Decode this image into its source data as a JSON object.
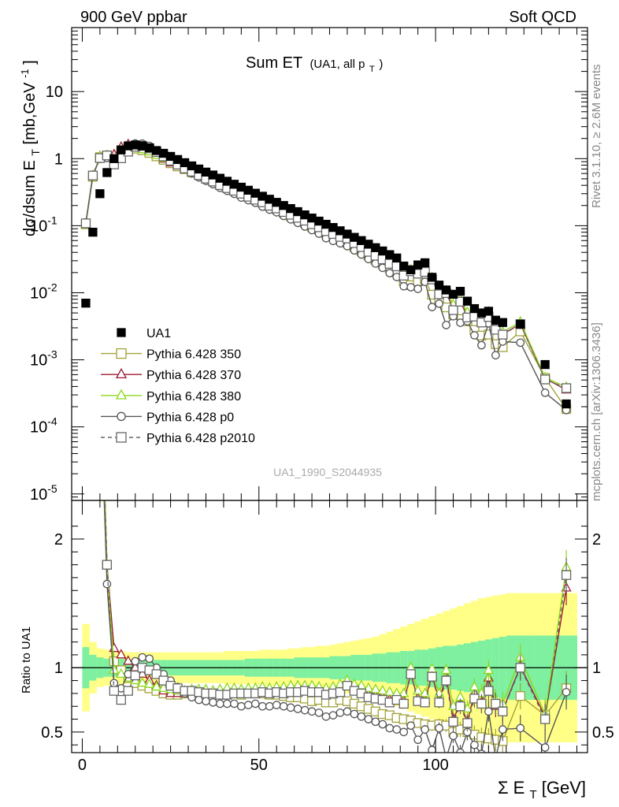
{
  "header": {
    "left": "900 GeV ppbar",
    "right": "Soft QCD"
  },
  "side_text": {
    "top": "Rivet 3.1.10, ≥ 2.6M events",
    "bottom": "mcplots.cern.ch [arXiv:1306.3436]"
  },
  "colors": {
    "data": "#000000",
    "p350": "#a2a23a",
    "p370": "#9e1b32",
    "p380": "#8bd81e",
    "p0": "#555555",
    "p2010": "#666666",
    "band_inner": "#7ef0a0",
    "band_outer": "#ffff88"
  },
  "chart_data": {
    "type": "scatter",
    "title": "Sum ET",
    "title_sub": "(UA1, all p",
    "title_sub_T": "T",
    "title_sub_end": ")",
    "watermark": "UA1_1990_S2044935",
    "xlabel": "Σ E",
    "xlabel_sub": "T",
    "xlabel_unit": " [GeV]",
    "ylabel_top_pre": "dσ/dsum E",
    "ylabel_top_sub": "T",
    "ylabel_top_unit": " [mb,GeV",
    "ylabel_top_sup": "-1",
    "ylabel_top_end": "]",
    "ylabel_bottom": "Ratio to UA1",
    "xlim": [
      -3,
      143
    ],
    "ylim_top": [
      8e-06,
      90
    ],
    "ylim_bottom": [
      0.34,
      2.3
    ],
    "x_ticks": [
      "0",
      "50",
      "100"
    ],
    "y_ticks_top": [
      {
        "base": "10",
        "exp": ""
      },
      {
        "base": "1",
        "exp": ""
      },
      {
        "base": "10",
        "exp": "-1"
      },
      {
        "base": "10",
        "exp": "-2"
      },
      {
        "base": "10",
        "exp": "-3"
      },
      {
        "base": "10",
        "exp": "-4"
      },
      {
        "base": "10",
        "exp": "-5"
      }
    ],
    "y_ticks_bottom": [
      "2",
      "1",
      "0.5"
    ],
    "legend": [
      {
        "key": "data",
        "label": "UA1"
      },
      {
        "key": "p350",
        "label": "Pythia 6.428 350"
      },
      {
        "key": "p370",
        "label": "Pythia 6.428 370"
      },
      {
        "key": "p380",
        "label": "Pythia 6.428 380"
      },
      {
        "key": "p0",
        "label": "Pythia 6.428 p0"
      },
      {
        "key": "p2010",
        "label": "Pythia 6.428 p2010"
      }
    ],
    "data_x": [
      1,
      3,
      5,
      7,
      9,
      11,
      13,
      15,
      17,
      19,
      21,
      23,
      25,
      27,
      29,
      31,
      33,
      35,
      37,
      39,
      41,
      43,
      45,
      47,
      49,
      51,
      53,
      55,
      57,
      59,
      61,
      63,
      65,
      67,
      69,
      71,
      73,
      75,
      77,
      79,
      81,
      83,
      85,
      87,
      89,
      91,
      93,
      95,
      97,
      99,
      101,
      103,
      105,
      107,
      109,
      111,
      113,
      115,
      117,
      119,
      124,
      131,
      137
    ],
    "data_y": [
      0.007,
      0.08,
      0.3,
      0.62,
      1.0,
      1.35,
      1.55,
      1.6,
      1.55,
      1.45,
      1.32,
      1.2,
      1.08,
      0.97,
      0.87,
      0.78,
      0.7,
      0.63,
      0.57,
      0.51,
      0.46,
      0.415,
      0.375,
      0.338,
      0.305,
      0.275,
      0.248,
      0.223,
      0.2,
      0.18,
      0.162,
      0.145,
      0.13,
      0.117,
      0.105,
      0.094,
      0.084,
      0.075,
      0.067,
      0.06,
      0.053,
      0.047,
      0.042,
      0.037,
      0.033,
      0.025,
      0.022,
      0.026,
      0.028,
      0.017,
      0.013,
      0.011,
      0.0095,
      0.0105,
      0.0075,
      0.0058,
      0.005,
      0.0053,
      0.0039,
      0.0036,
      0.0034,
      0.00085,
      0.00022
    ],
    "mc_x": [
      1,
      3,
      5,
      7,
      9,
      11,
      13,
      15,
      17,
      19,
      21,
      23,
      25,
      27,
      29,
      31,
      33,
      35,
      37,
      39,
      41,
      43,
      45,
      47,
      49,
      51,
      53,
      55,
      57,
      59,
      61,
      63,
      65,
      67,
      69,
      71,
      73,
      75,
      77,
      79,
      81,
      83,
      85,
      87,
      89,
      91,
      93,
      95,
      97,
      99,
      101,
      103,
      105,
      107,
      109,
      111,
      113,
      115,
      117,
      119,
      124,
      131,
      137
    ],
    "series": [
      {
        "key": "p350",
        "name": "Pythia 6.428 350",
        "marker": "square",
        "ratio": [
          15.0,
          6.7,
          3.5,
          1.8,
          1.05,
          0.98,
          0.92,
          0.88,
          0.86,
          0.84,
          0.82,
          0.8,
          0.79,
          0.79,
          0.8,
          0.8,
          0.81,
          0.8,
          0.8,
          0.79,
          0.79,
          0.8,
          0.79,
          0.8,
          0.8,
          0.8,
          0.79,
          0.79,
          0.78,
          0.77,
          0.77,
          0.76,
          0.74,
          0.75,
          0.73,
          0.73,
          0.75,
          0.74,
          0.72,
          0.7,
          0.68,
          0.66,
          0.64,
          0.63,
          0.61,
          0.6,
          0.59,
          0.57,
          0.56,
          0.55,
          0.56,
          0.55,
          0.5,
          0.52,
          0.5,
          0.48,
          0.46,
          0.45,
          0.44,
          0.43,
          0.78,
          0.63,
          0.84
        ]
      },
      {
        "key": "p370",
        "name": "Pythia 6.428 370",
        "marker": "triangle",
        "ratio": [
          15.0,
          6.9,
          3.6,
          1.8,
          1.15,
          1.1,
          1.05,
          1.0,
          0.95,
          0.9,
          0.86,
          0.82,
          0.8,
          0.8,
          0.8,
          0.81,
          0.81,
          0.8,
          0.8,
          0.8,
          0.81,
          0.81,
          0.8,
          0.81,
          0.82,
          0.82,
          0.81,
          0.82,
          0.82,
          0.82,
          0.82,
          0.83,
          0.82,
          0.82,
          0.81,
          0.82,
          0.83,
          0.87,
          0.84,
          0.82,
          0.79,
          0.78,
          0.77,
          0.75,
          0.76,
          0.74,
          0.95,
          0.76,
          0.75,
          0.94,
          0.75,
          0.93,
          0.6,
          0.72,
          0.58,
          0.8,
          0.73,
          0.92,
          0.7,
          0.67,
          1.01,
          0.62,
          1.62
        ]
      },
      {
        "key": "p380",
        "name": "Pythia 6.428 380",
        "marker": "triangle",
        "ratio": [
          15.0,
          7.0,
          3.6,
          1.8,
          0.98,
          0.95,
          0.92,
          0.9,
          0.88,
          0.87,
          0.85,
          0.84,
          0.83,
          0.82,
          0.82,
          0.83,
          0.83,
          0.83,
          0.82,
          0.83,
          0.84,
          0.84,
          0.83,
          0.84,
          0.84,
          0.85,
          0.84,
          0.85,
          0.85,
          0.86,
          0.86,
          0.86,
          0.86,
          0.85,
          0.84,
          0.85,
          0.87,
          0.9,
          0.87,
          0.86,
          0.84,
          0.83,
          0.82,
          0.81,
          0.8,
          0.8,
          1.0,
          0.82,
          0.8,
          0.99,
          0.8,
          0.98,
          0.7,
          0.77,
          0.68,
          0.85,
          0.8,
          0.98,
          0.75,
          0.72,
          1.08,
          0.64,
          1.78
        ]
      },
      {
        "key": "p0",
        "name": "Pythia 6.428 p0",
        "marker": "circle",
        "ratio": [
          16.0,
          7.2,
          3.3,
          1.65,
          0.88,
          0.84,
          0.95,
          1.05,
          1.08,
          1.07,
          1.0,
          0.95,
          0.9,
          0.85,
          0.8,
          0.77,
          0.75,
          0.74,
          0.73,
          0.72,
          0.72,
          0.72,
          0.7,
          0.71,
          0.72,
          0.7,
          0.7,
          0.71,
          0.7,
          0.69,
          0.68,
          0.67,
          0.66,
          0.65,
          0.62,
          0.63,
          0.65,
          0.66,
          0.64,
          0.62,
          0.6,
          0.58,
          0.56,
          0.53,
          0.52,
          0.5,
          0.55,
          0.44,
          0.52,
          0.36,
          0.53,
          0.3,
          0.47,
          0.34,
          0.5,
          0.4,
          0.33,
          0.66,
          0.3,
          0.52,
          0.53,
          0.38,
          0.81
        ]
      },
      {
        "key": "p2010",
        "name": "Pythia 6.428 p2010",
        "marker": "square",
        "ratio": [
          15.5,
          7.0,
          3.4,
          1.8,
          0.82,
          0.75,
          0.82,
          0.94,
          1.0,
          0.98,
          0.95,
          0.9,
          0.86,
          0.84,
          0.82,
          0.82,
          0.81,
          0.8,
          0.8,
          0.79,
          0.79,
          0.8,
          0.8,
          0.8,
          0.8,
          0.81,
          0.8,
          0.81,
          0.8,
          0.81,
          0.81,
          0.82,
          0.81,
          0.81,
          0.79,
          0.8,
          0.81,
          0.86,
          0.82,
          0.8,
          0.77,
          0.76,
          0.75,
          0.73,
          0.75,
          0.72,
          0.95,
          0.74,
          0.73,
          0.93,
          0.73,
          0.9,
          0.58,
          0.7,
          0.57,
          0.76,
          0.72,
          0.82,
          0.72,
          0.66,
          1.0,
          0.6,
          1.72
        ]
      }
    ],
    "band_edges": [
      0,
      2,
      4,
      6,
      8,
      10,
      12,
      14,
      16,
      18,
      20,
      22,
      24,
      26,
      28,
      30,
      32,
      34,
      36,
      38,
      40,
      42,
      44,
      46,
      48,
      50,
      52,
      54,
      56,
      58,
      60,
      62,
      64,
      66,
      68,
      70,
      72,
      74,
      76,
      78,
      80,
      82,
      84,
      86,
      88,
      90,
      92,
      94,
      96,
      98,
      100,
      102,
      104,
      106,
      108,
      110,
      112,
      114,
      116,
      118,
      120,
      128,
      134,
      140
    ],
    "band_inner": [
      0.16,
      0.1,
      0.08,
      0.07,
      0.07,
      0.07,
      0.06,
      0.06,
      0.06,
      0.06,
      0.06,
      0.06,
      0.06,
      0.06,
      0.06,
      0.06,
      0.06,
      0.06,
      0.06,
      0.06,
      0.06,
      0.06,
      0.06,
      0.07,
      0.07,
      0.07,
      0.07,
      0.07,
      0.07,
      0.07,
      0.08,
      0.08,
      0.08,
      0.08,
      0.08,
      0.09,
      0.09,
      0.09,
      0.1,
      0.1,
      0.1,
      0.11,
      0.11,
      0.12,
      0.12,
      0.13,
      0.13,
      0.14,
      0.14,
      0.15,
      0.16,
      0.17,
      0.17,
      0.18,
      0.19,
      0.2,
      0.21,
      0.22,
      0.23,
      0.24,
      0.25,
      0.25,
      0.25
    ],
    "band_outer": [
      0.34,
      0.2,
      0.15,
      0.14,
      0.13,
      0.13,
      0.12,
      0.12,
      0.12,
      0.12,
      0.12,
      0.12,
      0.12,
      0.12,
      0.12,
      0.12,
      0.12,
      0.12,
      0.12,
      0.12,
      0.13,
      0.13,
      0.13,
      0.13,
      0.13,
      0.14,
      0.14,
      0.14,
      0.14,
      0.15,
      0.15,
      0.16,
      0.16,
      0.17,
      0.17,
      0.18,
      0.19,
      0.2,
      0.21,
      0.22,
      0.23,
      0.24,
      0.26,
      0.28,
      0.3,
      0.32,
      0.34,
      0.36,
      0.38,
      0.4,
      0.42,
      0.44,
      0.46,
      0.48,
      0.5,
      0.52,
      0.54,
      0.55,
      0.56,
      0.57,
      0.58,
      0.58,
      0.58
    ]
  }
}
